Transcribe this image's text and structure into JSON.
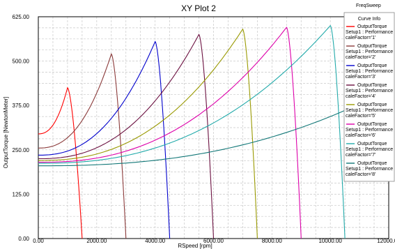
{
  "chart_data": {
    "type": "line",
    "title": "XY Plot 2",
    "xlabel": "RSpeed [rpm]",
    "ylabel": "OutputTorque [NewtonMeter]",
    "xlim": [
      0,
      12000
    ],
    "ylim": [
      0,
      625
    ],
    "x_ticks": [
      "0.00",
      "2000.00",
      "4000.00",
      "6000.00",
      "8000.00",
      "10000.00",
      "12000.00"
    ],
    "y_ticks": [
      "0.00",
      "125.00",
      "250.00",
      "375.00",
      "500.00",
      "625.00"
    ],
    "grid": true,
    "legend_corner_label": "FreqSweep",
    "legend_header": "Curve Info",
    "series": [
      {
        "name": "OutputTorque Setup1 : Performance ScaleFactor='1'",
        "color": "#ff0000",
        "start": 295,
        "peak_x": 1000,
        "peak_y": 425,
        "end_x": 1500
      },
      {
        "name": "OutputTorque Setup1 : Performance ScaleFactor='2'",
        "color": "#8b3a3a",
        "start": 255,
        "peak_x": 2500,
        "peak_y": 520,
        "end_x": 3000
      },
      {
        "name": "OutputTorque Setup1 : Performance ScaleFactor='3'",
        "color": "#0000cc",
        "start": 235,
        "peak_x": 4000,
        "peak_y": 555,
        "end_x": 4500
      },
      {
        "name": "OutputTorque Setup1 : Performance ScaleFactor='4'",
        "color": "#6b1040",
        "start": 225,
        "peak_x": 5500,
        "peak_y": 575,
        "end_x": 6000
      },
      {
        "name": "OutputTorque Setup1 : Performance ScaleFactor='5'",
        "color": "#999900",
        "start": 220,
        "peak_x": 7000,
        "peak_y": 590,
        "end_x": 7500
      },
      {
        "name": "OutputTorque Setup1 : Performance ScaleFactor='6'",
        "color": "#dd00aa",
        "start": 215,
        "peak_x": 8500,
        "peak_y": 595,
        "end_x": 9000
      },
      {
        "name": "OutputTorque Setup1 : Performance ScaleFactor='7'",
        "color": "#22aaaa",
        "start": 212,
        "peak_x": 10000,
        "peak_y": 600,
        "end_x": 10500
      },
      {
        "name": "OutputTorque Setup1 : Performance ScaleFactor='8'",
        "color": "#117777",
        "start": 205,
        "peak_x": 12000,
        "peak_y": 420,
        "end_x": 12000
      }
    ]
  }
}
